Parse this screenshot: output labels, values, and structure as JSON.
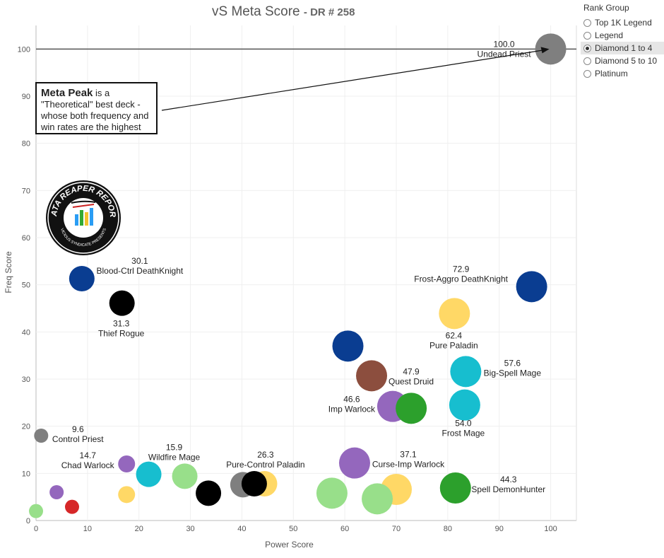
{
  "title": {
    "main": "vS Meta Score",
    "sub": "DR # 258"
  },
  "annotation": {
    "bold": "Meta Peak",
    "rest": " is a \"Theoretical\" best deck - whose both frequency and win rates are the highest"
  },
  "logo": {
    "text_top": "DATA REAPER REPORT",
    "text_bottom": "VICIOUS SYNDICATE PRESENTS"
  },
  "legend": {
    "title": "Rank Group",
    "options": [
      {
        "label": "Top 1K Legend",
        "selected": false
      },
      {
        "label": "Legend",
        "selected": false
      },
      {
        "label": "Diamond 1 to 4",
        "selected": true
      },
      {
        "label": "Diamond 5 to 10",
        "selected": false
      },
      {
        "label": "Platinum",
        "selected": false
      }
    ]
  },
  "chart_data": {
    "type": "scatter",
    "title": "vS Meta Score - DR # 258",
    "xlabel": "Power Score",
    "ylabel": "Freq Score",
    "xlim": [
      0,
      105
    ],
    "ylim": [
      0,
      105
    ],
    "xticks": [
      0,
      10,
      20,
      30,
      40,
      50,
      60,
      70,
      80,
      90,
      100
    ],
    "yticks": [
      0,
      10,
      20,
      30,
      40,
      50,
      60,
      70,
      80,
      90,
      100
    ],
    "reference_line_y": 100,
    "grid": true,
    "points": [
      {
        "x": 100,
        "y": 100,
        "score": "100.0",
        "name": "Undead Priest",
        "color": "#7f7f7f",
        "size": 3
      },
      {
        "x": 96.3,
        "y": 49.6,
        "score": "72.9",
        "name": "Frost-Aggro DeathKnight",
        "color": "#0a3d91",
        "size": 3
      },
      {
        "x": 81.3,
        "y": 43.9,
        "score": "62.4",
        "name": "Pure Paladin",
        "color": "#ffd866",
        "size": 3
      },
      {
        "x": 83.5,
        "y": 31.6,
        "score": "57.6",
        "name": "Big-Spell Mage",
        "color": "#17becf",
        "size": 3
      },
      {
        "x": 83.3,
        "y": 24.5,
        "score": "54.0",
        "name": "Frost Mage",
        "color": "#17becf",
        "size": 3
      },
      {
        "x": 60.6,
        "y": 37.0,
        "score": "",
        "name": "",
        "color": "#0a3d91",
        "size": 3
      },
      {
        "x": 65.2,
        "y": 30.7,
        "score": "47.9",
        "name": "Quest Druid",
        "color": "#8c4e3e",
        "size": 3
      },
      {
        "x": 69.3,
        "y": 24.2,
        "score": "46.6",
        "name": "Imp Warlock",
        "color": "#9467bd",
        "size": 3
      },
      {
        "x": 72.9,
        "y": 23.8,
        "score": "",
        "name": "",
        "color": "#2ca02c",
        "size": 3
      },
      {
        "x": 81.5,
        "y": 6.9,
        "score": "44.3",
        "name": "Spell DemonHunter",
        "color": "#2ca02c",
        "size": 3
      },
      {
        "x": 61.9,
        "y": 12.2,
        "score": "37.1",
        "name": "Curse-Imp Warlock",
        "color": "#9467bd",
        "size": 3
      },
      {
        "x": 70.0,
        "y": 6.6,
        "score": "",
        "name": "",
        "color": "#ffd866",
        "size": 3
      },
      {
        "x": 66.3,
        "y": 4.6,
        "score": "",
        "name": "",
        "color": "#98df8a",
        "size": 3
      },
      {
        "x": 57.5,
        "y": 5.8,
        "score": "",
        "name": "",
        "color": "#98df8a",
        "size": 3
      },
      {
        "x": 44.4,
        "y": 7.8,
        "score": "",
        "name": "",
        "color": "#ffd866",
        "size": 2
      },
      {
        "x": 40.2,
        "y": 7.6,
        "score": "",
        "name": "",
        "color": "#7f7f7f",
        "size": 2
      },
      {
        "x": 42.4,
        "y": 7.8,
        "score": "26.3",
        "name": "Pure-Control Paladin",
        "color": "#000000",
        "size": 2
      },
      {
        "x": 33.5,
        "y": 5.8,
        "score": "",
        "name": "",
        "color": "#000000",
        "size": 2
      },
      {
        "x": 28.9,
        "y": 9.4,
        "score": "15.9",
        "name": "Wildfire Mage",
        "color": "#98df8a",
        "size": 2
      },
      {
        "x": 21.9,
        "y": 9.8,
        "score": "",
        "name": "",
        "color": "#17becf",
        "size": 2
      },
      {
        "x": 17.6,
        "y": 12.0,
        "score": "14.7",
        "name": "Chad Warlock",
        "color": "#9467bd",
        "size": 1
      },
      {
        "x": 17.6,
        "y": 5.5,
        "score": "",
        "name": "",
        "color": "#ffd866",
        "size": 1
      },
      {
        "x": 4.0,
        "y": 6.0,
        "score": "",
        "name": "",
        "color": "#9467bd",
        "size": 0
      },
      {
        "x": 7.0,
        "y": 2.9,
        "score": "",
        "name": "",
        "color": "#d62728",
        "size": 0
      },
      {
        "x": 0.0,
        "y": 2.0,
        "score": "",
        "name": "",
        "color": "#98df8a",
        "size": 0
      },
      {
        "x": 1.0,
        "y": 18.0,
        "score": "9.6",
        "name": "Control Priest",
        "color": "#7f7f7f",
        "size": 0
      },
      {
        "x": 8.9,
        "y": 51.3,
        "score": "30.1",
        "name": "Blood-Ctrl DeathKnight",
        "color": "#0a3d91",
        "size": 2
      },
      {
        "x": 16.7,
        "y": 46.1,
        "score": "31.3",
        "name": "Thief Rogue",
        "color": "#000000",
        "size": 2
      }
    ]
  }
}
